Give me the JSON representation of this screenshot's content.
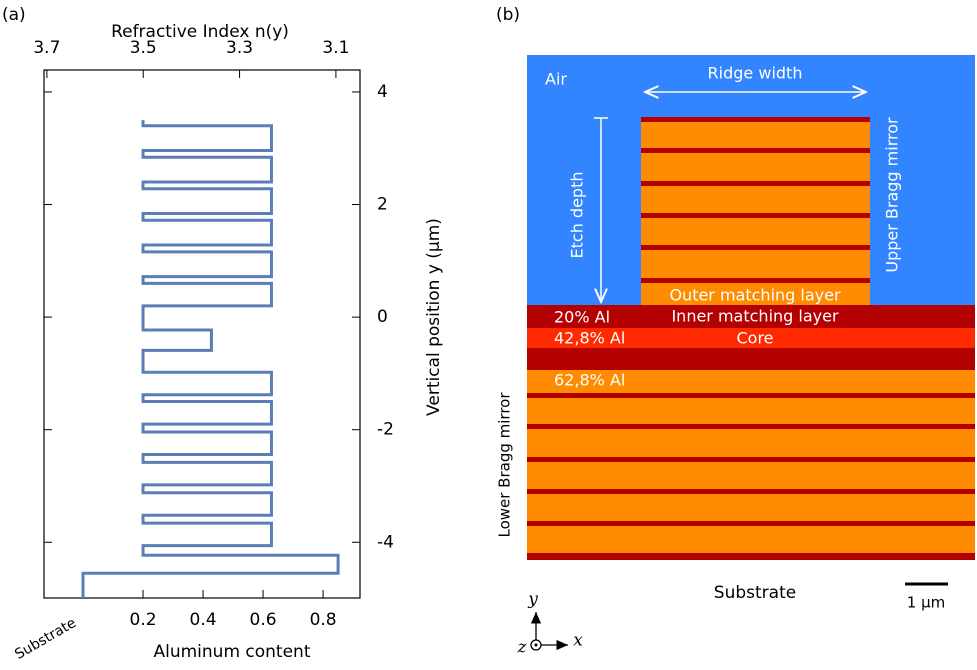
{
  "chart_data": {
    "type": "line",
    "panel_label": "(a)",
    "x_label": "Aluminum content",
    "x2_label": "Refractive Index n(y)",
    "y_label": "Vertical position y (μm)",
    "color": "#5b7fb5",
    "x": [
      0.2,
      0.2,
      0.628,
      0.628,
      0.2,
      0.2,
      0.628,
      0.628,
      0.2,
      0.2,
      0.628,
      0.628,
      0.2,
      0.2,
      0.628,
      0.628,
      0.2,
      0.2,
      0.628,
      0.628,
      0.2,
      0.2,
      0.628,
      0.628,
      0.2,
      0.2,
      0.428,
      0.428,
      0.2,
      0.2,
      0.628,
      0.628,
      0.2,
      0.2,
      0.628,
      0.628,
      0.2,
      0.2,
      0.628,
      0.628,
      0.2,
      0.2,
      0.628,
      0.628,
      0.2,
      0.2,
      0.628,
      0.628,
      0.2,
      0.2,
      0.628,
      0.628,
      0.2,
      0.2,
      0.85,
      0.85,
      0,
      0
    ],
    "values": [
      3.5,
      3.4,
      3.4,
      2.96,
      2.96,
      2.84,
      2.84,
      2.4,
      2.4,
      2.28,
      2.28,
      1.84,
      1.84,
      1.72,
      1.72,
      1.28,
      1.28,
      1.16,
      1.16,
      0.72,
      0.72,
      0.6,
      0.6,
      0.2,
      0.2,
      -0.23,
      -0.23,
      -0.59,
      -0.59,
      -0.98,
      -0.98,
      -1.38,
      -1.38,
      -1.5,
      -1.5,
      -1.9,
      -1.9,
      -2.04,
      -2.04,
      -2.44,
      -2.44,
      -2.58,
      -2.58,
      -2.98,
      -2.98,
      -3.12,
      -3.12,
      -3.52,
      -3.52,
      -3.66,
      -3.66,
      -4.06,
      -4.06,
      -4.23,
      -4.23,
      -4.55,
      -4.55,
      -4.99
    ],
    "xlim": [
      -0.13,
      0.923
    ],
    "xticks": [
      {
        "value": 0,
        "label": "Substrate"
      },
      0.2,
      0.4,
      0.6,
      0.8
    ],
    "x2lim": [
      3.706,
      3.05
    ],
    "x2ticks": [
      3.7,
      3.5,
      3.3,
      3.1
    ],
    "ylim": [
      -4.99,
      4.39
    ],
    "yticks": [
      4,
      2,
      0,
      -2,
      -4
    ]
  },
  "panel_b": {
    "panel_label": "(b)",
    "air": "Air",
    "ridge_width": "Ridge width",
    "etch_depth": "Etch depth",
    "upper_mirror": "Upper Bragg mirror",
    "outer_matching": "Outer matching layer",
    "al20": "20% Al",
    "inner_matching": "Inner matching layer",
    "al428": "42,8% Al",
    "core": "Core",
    "al628": "62,8% Al",
    "lower_mirror": "Lower Bragg mirror",
    "substrate": "Substrate",
    "scale": "1 μm",
    "axis_y": "y",
    "axis_z": "z",
    "axis_x": "x"
  }
}
